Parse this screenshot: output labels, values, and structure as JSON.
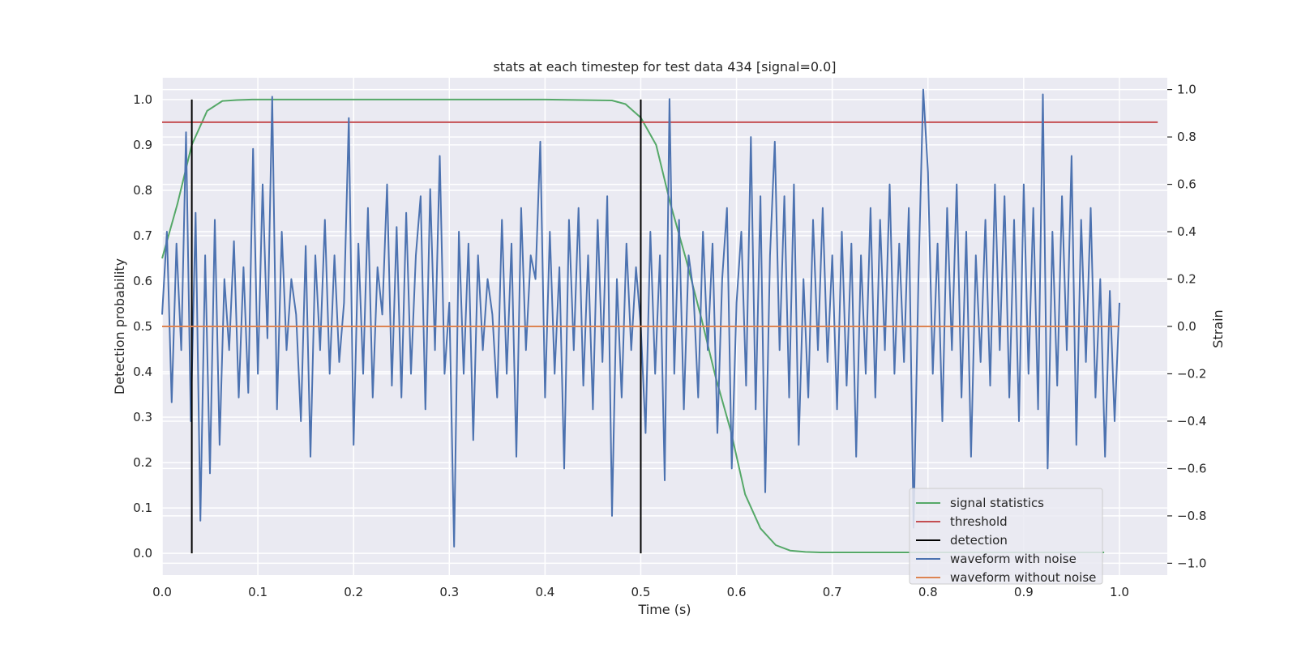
{
  "chart_data": {
    "type": "line",
    "title": "stats at each timestep for test data 434 [signal=0.0]",
    "xlabel": "Time (s)",
    "ylabel": "Detection probability",
    "y2label": "Strain",
    "xlim": [
      0.0,
      1.05
    ],
    "ylim": [
      -0.048,
      1.048
    ],
    "y2lim": [
      -1.05,
      1.05
    ],
    "xticks": [
      "0.0",
      "0.1",
      "0.2",
      "0.3",
      "0.4",
      "0.5",
      "0.6",
      "0.7",
      "0.8",
      "0.9",
      "1.0"
    ],
    "yticks": [
      "0.0",
      "0.1",
      "0.2",
      "0.3",
      "0.4",
      "0.5",
      "0.6",
      "0.7",
      "0.8",
      "0.9",
      "1.0"
    ],
    "y2ticks": [
      "−1.0",
      "−0.8",
      "−0.6",
      "−0.4",
      "−0.2",
      "0.0",
      "0.2",
      "0.4",
      "0.6",
      "0.8",
      "1.0"
    ],
    "grid": true,
    "legend_position": "lower-right",
    "series": [
      {
        "name": "signal statistics",
        "color": "#55a868",
        "axis": "left",
        "x": [
          0.0,
          0.016,
          0.031,
          0.047,
          0.063,
          0.078,
          0.094,
          0.2,
          0.3,
          0.4,
          0.47,
          0.484,
          0.5,
          0.516,
          0.531,
          0.547,
          0.563,
          0.578,
          0.594,
          0.609,
          0.625,
          0.641,
          0.656,
          0.672,
          0.688,
          0.75,
          0.85,
          0.95,
          0.984
        ],
        "y": [
          0.65,
          0.77,
          0.9,
          0.975,
          0.997,
          0.999,
          1.0,
          1.0,
          1.0,
          1.0,
          0.998,
          0.99,
          0.96,
          0.9,
          0.77,
          0.65,
          0.52,
          0.39,
          0.27,
          0.13,
          0.055,
          0.018,
          0.006,
          0.003,
          0.002,
          0.002,
          0.002,
          0.002,
          0.002
        ]
      },
      {
        "name": "threshold",
        "color": "#c44e52",
        "axis": "left",
        "x": [
          0.0,
          1.04
        ],
        "y": [
          0.95,
          0.95
        ]
      },
      {
        "name": "detection",
        "color": "#000000",
        "axis": "left",
        "type": "vlines",
        "x": [
          0.031,
          0.5
        ],
        "y": [
          0.0,
          1.0
        ]
      },
      {
        "name": "waveform with noise",
        "color": "#4c72b0",
        "axis": "right",
        "x": [
          0.0,
          0.005,
          0.01,
          0.015,
          0.02,
          0.025,
          0.03,
          0.035,
          0.04,
          0.045,
          0.05,
          0.055,
          0.06,
          0.065,
          0.07,
          0.075,
          0.08,
          0.085,
          0.09,
          0.095,
          0.1,
          0.105,
          0.11,
          0.115,
          0.12,
          0.125,
          0.13,
          0.135,
          0.14,
          0.145,
          0.15,
          0.155,
          0.16,
          0.165,
          0.17,
          0.175,
          0.18,
          0.185,
          0.19,
          0.195,
          0.2,
          0.205,
          0.21,
          0.215,
          0.22,
          0.225,
          0.23,
          0.235,
          0.24,
          0.245,
          0.25,
          0.255,
          0.26,
          0.265,
          0.27,
          0.275,
          0.28,
          0.285,
          0.29,
          0.295,
          0.3,
          0.305,
          0.31,
          0.315,
          0.32,
          0.325,
          0.33,
          0.335,
          0.34,
          0.345,
          0.35,
          0.355,
          0.36,
          0.365,
          0.37,
          0.375,
          0.38,
          0.385,
          0.39,
          0.395,
          0.4,
          0.405,
          0.41,
          0.415,
          0.42,
          0.425,
          0.43,
          0.435,
          0.44,
          0.445,
          0.45,
          0.455,
          0.46,
          0.465,
          0.47,
          0.475,
          0.48,
          0.485,
          0.49,
          0.495,
          0.5,
          0.505,
          0.51,
          0.515,
          0.52,
          0.525,
          0.53,
          0.535,
          0.54,
          0.545,
          0.55,
          0.555,
          0.56,
          0.565,
          0.57,
          0.575,
          0.58,
          0.585,
          0.59,
          0.595,
          0.6,
          0.605,
          0.61,
          0.615,
          0.62,
          0.625,
          0.63,
          0.635,
          0.64,
          0.645,
          0.65,
          0.655,
          0.66,
          0.665,
          0.67,
          0.675,
          0.68,
          0.685,
          0.69,
          0.695,
          0.7,
          0.705,
          0.71,
          0.715,
          0.72,
          0.725,
          0.73,
          0.735,
          0.74,
          0.745,
          0.75,
          0.755,
          0.76,
          0.765,
          0.77,
          0.775,
          0.78,
          0.785,
          0.79,
          0.795,
          0.8,
          0.805,
          0.81,
          0.815,
          0.82,
          0.825,
          0.83,
          0.835,
          0.84,
          0.845,
          0.85,
          0.855,
          0.86,
          0.865,
          0.87,
          0.875,
          0.88,
          0.885,
          0.89,
          0.895,
          0.9,
          0.905,
          0.91,
          0.915,
          0.92,
          0.925,
          0.93,
          0.935,
          0.94,
          0.945,
          0.95,
          0.955,
          0.96,
          0.965,
          0.97,
          0.975,
          0.98,
          0.985,
          0.99,
          0.995,
          1.0
        ],
        "y": [
          0.05,
          0.4,
          -0.32,
          0.35,
          -0.1,
          0.82,
          -0.4,
          0.48,
          -0.82,
          0.3,
          -0.62,
          0.45,
          -0.5,
          0.2,
          -0.1,
          0.36,
          -0.3,
          0.25,
          -0.28,
          0.75,
          -0.2,
          0.6,
          -0.05,
          0.97,
          -0.35,
          0.4,
          -0.1,
          0.2,
          0.05,
          -0.4,
          0.34,
          -0.55,
          0.3,
          -0.1,
          0.45,
          -0.2,
          0.3,
          -0.15,
          0.1,
          0.88,
          -0.5,
          0.35,
          -0.2,
          0.5,
          -0.3,
          0.25,
          0.05,
          0.6,
          -0.25,
          0.42,
          -0.3,
          0.48,
          -0.2,
          0.3,
          0.55,
          -0.35,
          0.58,
          -0.1,
          0.72,
          -0.2,
          0.1,
          -0.93,
          0.4,
          -0.2,
          0.35,
          -0.48,
          0.3,
          -0.1,
          0.2,
          0.05,
          -0.3,
          0.45,
          -0.2,
          0.35,
          -0.55,
          0.5,
          -0.1,
          0.3,
          0.2,
          0.78,
          -0.3,
          0.4,
          -0.2,
          0.25,
          -0.6,
          0.45,
          -0.1,
          0.5,
          -0.25,
          0.3,
          -0.35,
          0.45,
          -0.15,
          0.55,
          -0.8,
          0.2,
          -0.3,
          0.35,
          -0.1,
          0.25,
          0.0,
          -0.45,
          0.4,
          -0.2,
          0.3,
          -0.65,
          0.96,
          -0.2,
          0.45,
          -0.35,
          0.3,
          0.15,
          -0.3,
          0.4,
          -0.1,
          0.35,
          -0.45,
          0.2,
          0.5,
          -0.6,
          0.1,
          0.4,
          -0.25,
          0.8,
          -0.35,
          0.55,
          -0.7,
          0.3,
          0.78,
          -0.1,
          0.55,
          -0.3,
          0.6,
          -0.5,
          0.2,
          -0.3,
          0.45,
          -0.1,
          0.5,
          -0.15,
          0.3,
          -0.35,
          0.4,
          -0.25,
          0.35,
          -0.55,
          0.3,
          -0.2,
          0.5,
          -0.3,
          0.45,
          -0.1,
          0.6,
          -0.2,
          0.35,
          -0.15,
          0.5,
          -0.85,
          0.2,
          1.0,
          0.65,
          -0.2,
          0.35,
          -0.4,
          0.5,
          -0.1,
          0.6,
          -0.3,
          0.4,
          -0.55,
          0.3,
          -0.15,
          0.45,
          -0.25,
          0.6,
          -0.1,
          0.55,
          -0.3,
          0.45,
          -0.4,
          0.6,
          -0.2,
          0.5,
          -0.35,
          0.98,
          -0.6,
          0.4,
          -0.25,
          0.55,
          -0.1,
          0.72,
          -0.5,
          0.45,
          -0.15,
          0.5,
          -0.3,
          0.2,
          -0.55,
          0.15,
          -0.4,
          0.1
        ]
      },
      {
        "name": "waveform without noise",
        "color": "#dd8452",
        "axis": "right",
        "x": [
          0.0,
          1.0
        ],
        "y": [
          0.0,
          0.0
        ]
      }
    ]
  }
}
